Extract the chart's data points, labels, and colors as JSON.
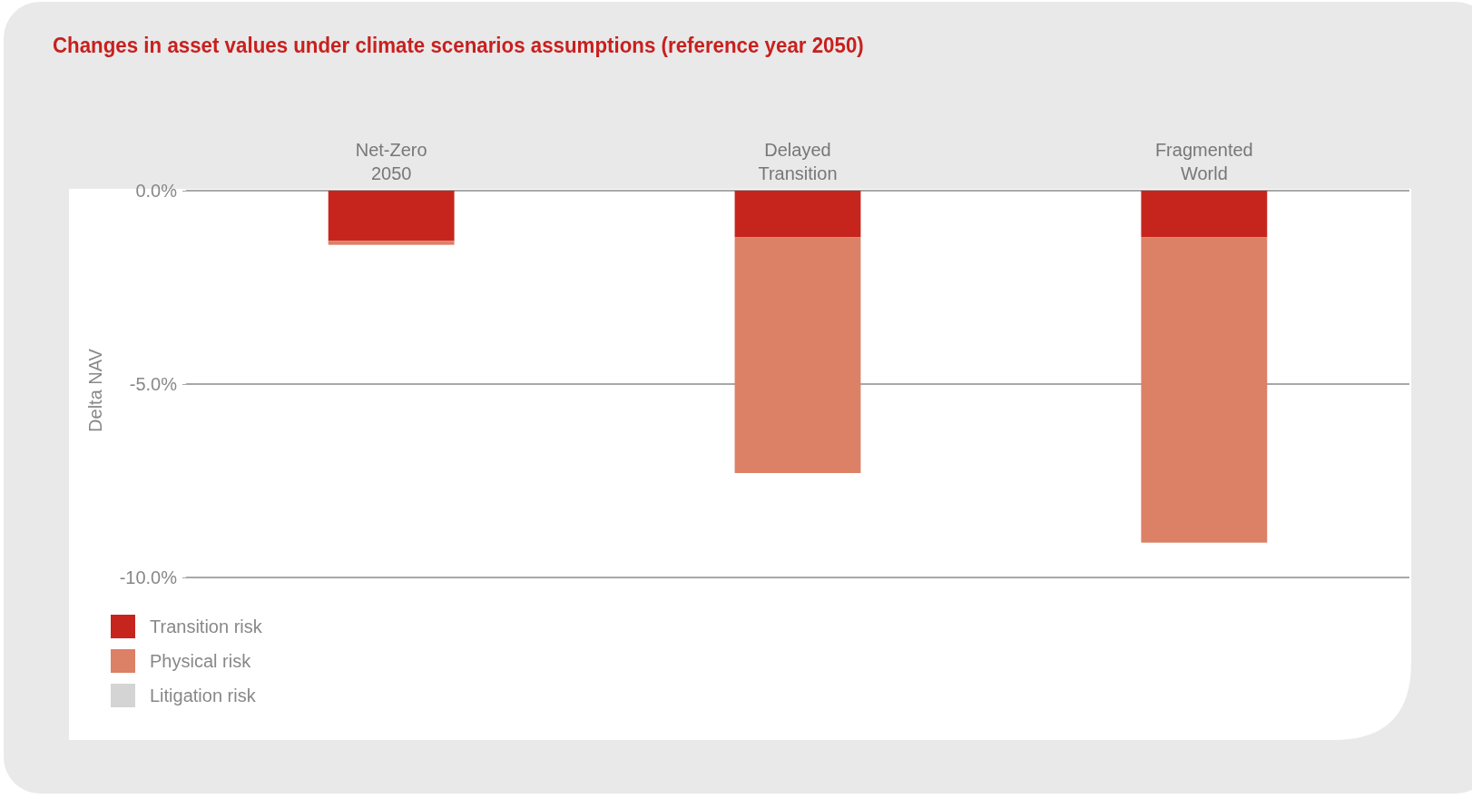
{
  "chart_data": {
    "type": "bar",
    "title": "Changes in asset values under climate scenarios assumptions (reference year 2050)",
    "ylabel": "Delta NAV",
    "categories": [
      "Net-Zero\n2050",
      "Delayed\nTransition",
      "Fragmented\nWorld"
    ],
    "stacked": true,
    "series": [
      {
        "name": "Transition risk",
        "color": "#c6251e",
        "values": [
          -1.3,
          -1.2,
          -1.2
        ]
      },
      {
        "name": "Physical risk",
        "color": "#dc8066",
        "values": [
          -0.1,
          -6.1,
          -7.9
        ]
      },
      {
        "name": "Litigation risk",
        "color": "#d4d4d4",
        "values": [
          0,
          0,
          0
        ]
      }
    ],
    "ylim": [
      -10,
      0
    ],
    "yticks": [
      {
        "value": 0,
        "label": "0.0%"
      },
      {
        "value": -5,
        "label": "-5.0%"
      },
      {
        "value": -10,
        "label": "-10.0%"
      }
    ],
    "grid": "y",
    "legend": "bottom left"
  }
}
